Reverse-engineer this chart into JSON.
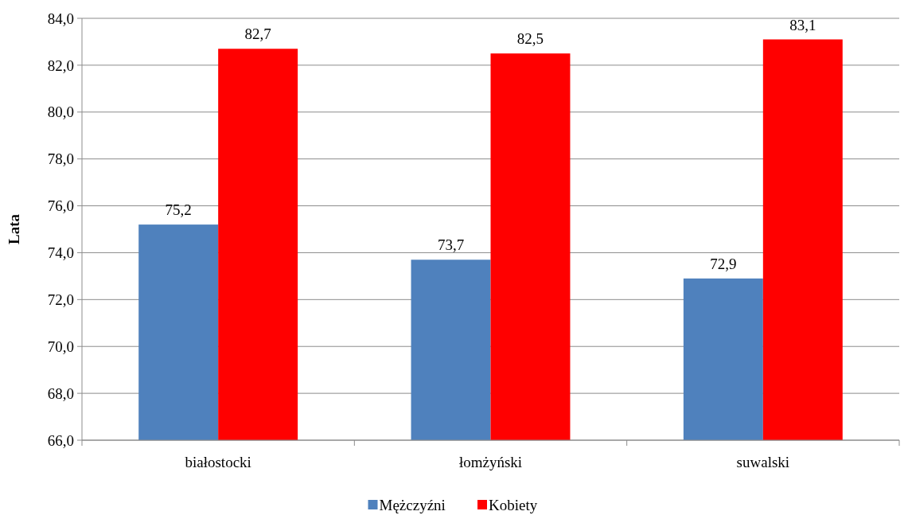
{
  "chart_data": {
    "type": "bar",
    "ylabel": "Lata",
    "categories": [
      "białostocki",
      "łomżyński",
      "suwalski"
    ],
    "series": [
      {
        "name": "Mężczyźni",
        "color": "#4f81bd",
        "values": [
          75.2,
          73.7,
          72.9
        ],
        "value_labels": [
          "75,2",
          "73,7",
          "72,9"
        ]
      },
      {
        "name": "Kobiety",
        "color": "#ff0000",
        "values": [
          82.7,
          82.5,
          83.1
        ],
        "value_labels": [
          "82,7",
          "82,5",
          "83,1"
        ]
      }
    ],
    "ylim": [
      66,
      84
    ],
    "yticks": [
      {
        "value": 66,
        "label": "66,0"
      },
      {
        "value": 68,
        "label": "68,0"
      },
      {
        "value": 70,
        "label": "70,0"
      },
      {
        "value": 72,
        "label": "72,0"
      },
      {
        "value": 74,
        "label": "74,0"
      },
      {
        "value": 76,
        "label": "76,0"
      },
      {
        "value": 78,
        "label": "78,0"
      },
      {
        "value": 80,
        "label": "80,0"
      },
      {
        "value": 82,
        "label": "82,0"
      },
      {
        "value": 84,
        "label": "84,0"
      }
    ],
    "grid": "y",
    "legend": "bottom"
  }
}
